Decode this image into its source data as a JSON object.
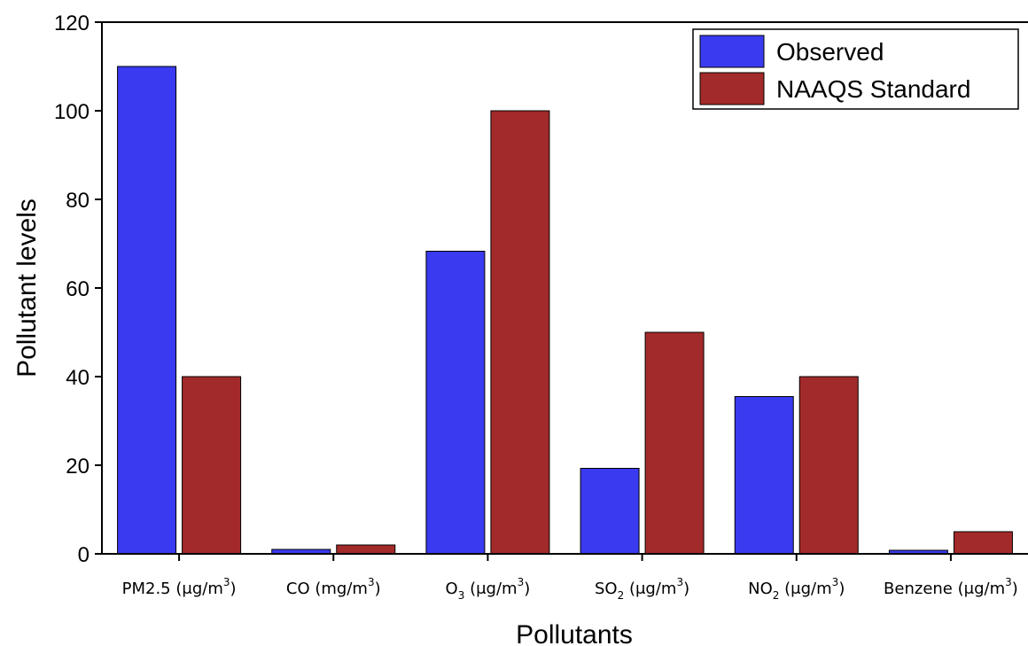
{
  "chart_data": {
    "type": "bar",
    "categories": [
      {
        "main": "PM2.5 (μg/m",
        "sub": "",
        "after": "",
        "sup": "3",
        "close": ")"
      },
      {
        "main": "CO (mg/m",
        "sub": "",
        "after": "",
        "sup": "3",
        "close": ")"
      },
      {
        "main": "O",
        "sub": "3",
        "after": " (μg/m",
        "sup": "3",
        "close": ")"
      },
      {
        "main": "SO",
        "sub": "2",
        "after": " (μg/m",
        "sup": "3",
        "close": ")"
      },
      {
        "main": "NO",
        "sub": "2",
        "after": " (μg/m",
        "sup": "3",
        "close": ")"
      },
      {
        "main": "Benzene (μg/m",
        "sub": "",
        "after": "",
        "sup": "3",
        "close": ")"
      }
    ],
    "series": [
      {
        "name": "Observed",
        "color": "#3a3af0",
        "values": [
          110,
          1,
          68.3,
          19.3,
          35.5,
          0.8
        ]
      },
      {
        "name": "NAAQS Standard",
        "color": "#a32a2a",
        "values": [
          40,
          2,
          100,
          50,
          40,
          5
        ]
      }
    ],
    "xlabel": "Pollutants",
    "ylabel": "Pollutant levels",
    "ylim": [
      0,
      120
    ],
    "yticks": [
      0,
      20,
      40,
      60,
      80,
      100,
      120
    ],
    "legend_position": "top-right",
    "grid": false
  }
}
